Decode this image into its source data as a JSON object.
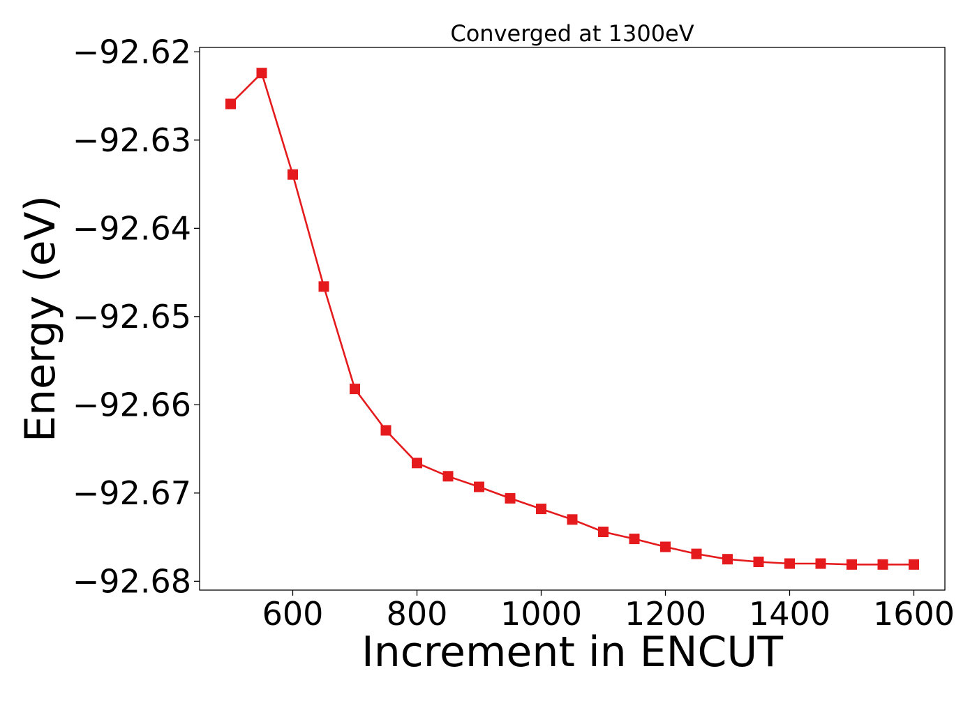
{
  "chart_data": {
    "type": "line",
    "title": "Converged at 1300eV",
    "xlabel": "Increment in ENCUT",
    "ylabel": "Energy (eV)",
    "xlim": [
      450,
      1650
    ],
    "ylim": [
      -92.681,
      -92.6195
    ],
    "xticks": [
      600,
      800,
      1000,
      1200,
      1400,
      1600
    ],
    "xtick_labels": [
      "600",
      "800",
      "1000",
      "1200",
      "1400",
      "1600"
    ],
    "yticks": [
      -92.62,
      -92.63,
      -92.64,
      -92.65,
      -92.66,
      -92.67,
      -92.68
    ],
    "ytick_labels": [
      "−92.62",
      "−92.63",
      "−92.64",
      "−92.65",
      "−92.66",
      "−92.67",
      "−92.68"
    ],
    "grid": false,
    "series": [
      {
        "color": "#e41a1c",
        "marker": "square",
        "x": [
          500,
          550,
          600,
          650,
          700,
          750,
          800,
          850,
          900,
          950,
          1000,
          1050,
          1100,
          1150,
          1200,
          1250,
          1300,
          1350,
          1400,
          1450,
          1500,
          1550,
          1600
        ],
        "y": [
          -92.6259,
          -92.6224,
          -92.6339,
          -92.6466,
          -92.6582,
          -92.6629,
          -92.6666,
          -92.6681,
          -92.6693,
          -92.6706,
          -92.6718,
          -92.673,
          -92.6744,
          -92.6752,
          -92.6761,
          -92.6769,
          -92.6775,
          -92.6778,
          -92.678,
          -92.678,
          -92.6781,
          -92.6781,
          -92.6781
        ]
      }
    ]
  }
}
